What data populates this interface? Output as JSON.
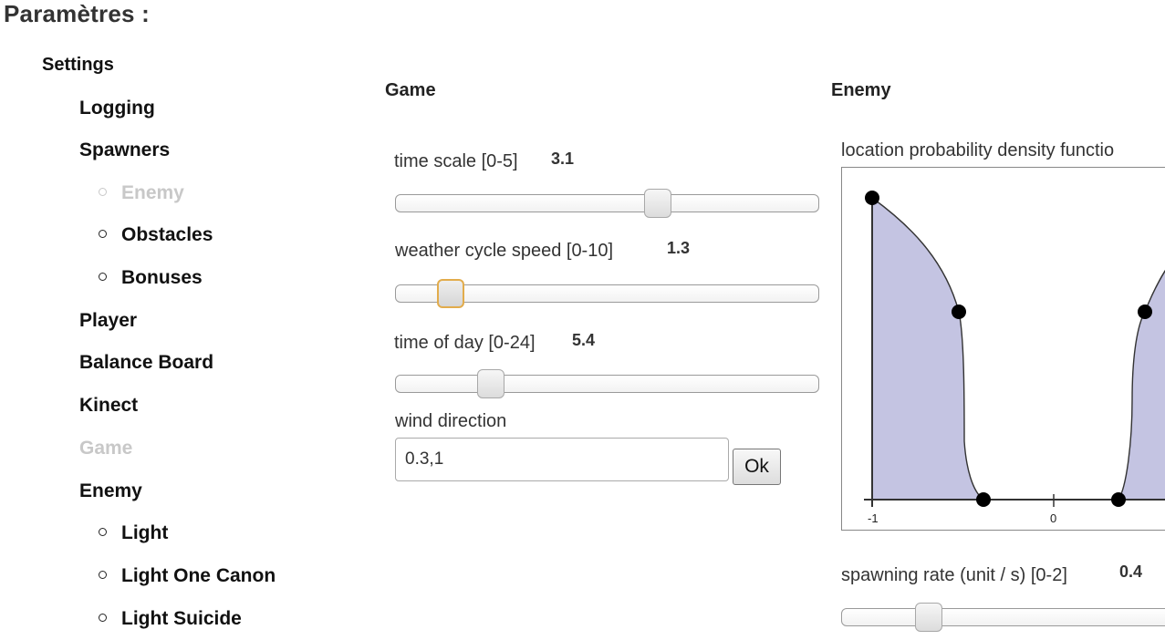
{
  "page_title": "Paramètres :",
  "sidebar": {
    "root": "Settings",
    "items": [
      {
        "label": "Logging",
        "level": 1,
        "disabled": false
      },
      {
        "label": "Spawners",
        "level": 1,
        "disabled": false
      },
      {
        "label": "Enemy",
        "level": 2,
        "disabled": true
      },
      {
        "label": "Obstacles",
        "level": 2,
        "disabled": false
      },
      {
        "label": "Bonuses",
        "level": 2,
        "disabled": false
      },
      {
        "label": "Player",
        "level": 1,
        "disabled": false
      },
      {
        "label": "Balance Board",
        "level": 1,
        "disabled": false
      },
      {
        "label": "Kinect",
        "level": 1,
        "disabled": false
      },
      {
        "label": "Game",
        "level": 1,
        "disabled": true
      },
      {
        "label": "Enemy",
        "level": 1,
        "disabled": false
      },
      {
        "label": "Light",
        "level": 2,
        "disabled": false
      },
      {
        "label": "Light One Canon",
        "level": 2,
        "disabled": false
      },
      {
        "label": "Light Suicide",
        "level": 2,
        "disabled": false
      }
    ]
  },
  "game": {
    "title": "Game",
    "params": [
      {
        "label": "time scale [0-5]",
        "value": "3.1",
        "fraction": 0.62,
        "focused": false
      },
      {
        "label": "weather cycle speed [0-10]",
        "value": "1.3",
        "fraction": 0.13,
        "focused": true
      },
      {
        "label": "time of day [0-24]",
        "value": "5.4",
        "fraction": 0.225,
        "focused": false
      }
    ],
    "wind_direction": {
      "label": "wind direction",
      "value": "0.3,1",
      "button": "Ok"
    }
  },
  "enemy": {
    "title": "Enemy",
    "pdf_label": "location probability density functio",
    "tick_labels": [
      "-1",
      "0"
    ],
    "spawning_rate": {
      "label": "spawning rate (unit / s) [0-2]",
      "value": "0.4"
    }
  },
  "colors": {
    "fill": "#c4c4e2",
    "curve": "#222222",
    "handle_focus": "#e2ac4c",
    "disabled": "#c8c8c8"
  }
}
